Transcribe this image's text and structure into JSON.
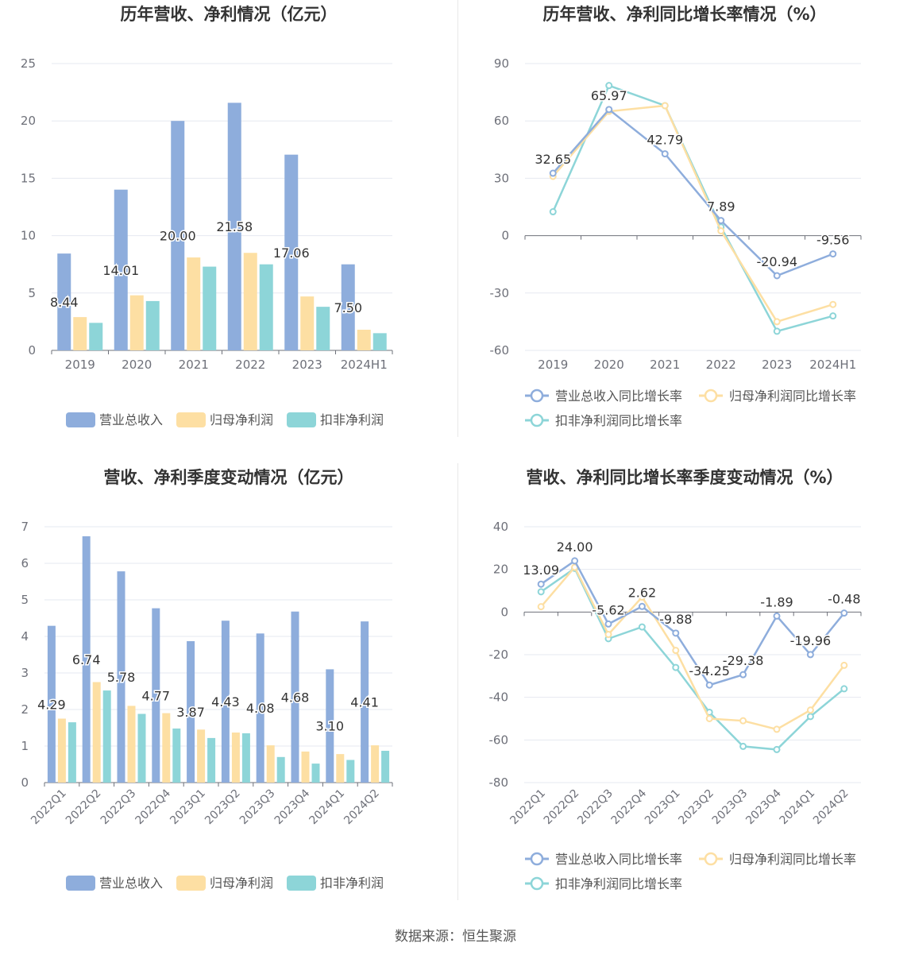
{
  "footer": "数据来源：恒生聚源",
  "colors": {
    "revenue": "#8EADDC",
    "net_profit": "#FDDFA3",
    "deducted_profit": "#8DD5D8"
  },
  "chart_data": [
    {
      "type": "bar",
      "title": "历年营收、净利情况（亿元）",
      "categories": [
        "2019",
        "2020",
        "2021",
        "2022",
        "2023",
        "2024H1"
      ],
      "ylim": [
        0,
        25
      ],
      "yticks": [
        0,
        5,
        10,
        15,
        20,
        25
      ],
      "grid": true,
      "legend_position": "bottom",
      "series": [
        {
          "name": "营业总收入",
          "values": [
            8.44,
            14.01,
            20.0,
            21.58,
            17.06,
            7.5
          ],
          "labels": [
            "8.44",
            "14.01",
            "20.00",
            "21.58",
            "17.06",
            "7.50"
          ]
        },
        {
          "name": "归母净利润",
          "values": [
            2.9,
            4.8,
            8.1,
            8.5,
            4.7,
            1.8
          ]
        },
        {
          "name": "扣非净利润",
          "values": [
            2.4,
            4.3,
            7.3,
            7.5,
            3.8,
            1.5
          ]
        }
      ]
    },
    {
      "type": "line",
      "title": "历年营收、净利同比增长率情况（%）",
      "categories": [
        "2019",
        "2020",
        "2021",
        "2022",
        "2023",
        "2024H1"
      ],
      "ylim": [
        -60,
        90
      ],
      "yticks": [
        -60,
        -30,
        0,
        30,
        60,
        90
      ],
      "grid": true,
      "legend_position": "bottom",
      "series": [
        {
          "name": "营业总收入同比增长率",
          "values": [
            32.65,
            65.97,
            42.79,
            7.89,
            -20.94,
            -9.56
          ],
          "labels": [
            "32.65",
            "65.97",
            "42.79",
            "7.89",
            "-20.94",
            "-9.56"
          ]
        },
        {
          "name": "归母净利润同比增长率",
          "values": [
            31.0,
            65.0,
            68.0,
            2.5,
            -45.0,
            -36.0
          ]
        },
        {
          "name": "扣非净利润同比增长率",
          "values": [
            12.5,
            78.5,
            68.0,
            4.5,
            -50.0,
            -42.0
          ]
        }
      ]
    },
    {
      "type": "bar",
      "title": "营收、净利季度变动情况（亿元）",
      "categories": [
        "2022Q1",
        "2022Q2",
        "2022Q3",
        "2022Q4",
        "2023Q1",
        "2023Q2",
        "2023Q3",
        "2023Q4",
        "2024Q1",
        "2024Q2"
      ],
      "ylim": [
        0,
        7
      ],
      "yticks": [
        0,
        1,
        2,
        3,
        4,
        5,
        6,
        7
      ],
      "grid": true,
      "legend_position": "bottom",
      "series": [
        {
          "name": "营业总收入",
          "values": [
            4.29,
            6.74,
            5.78,
            4.77,
            3.87,
            4.43,
            4.08,
            4.68,
            3.1,
            4.41
          ],
          "labels": [
            "4.29",
            "6.74",
            "5.78",
            "4.77",
            "3.87",
            "4.43",
            "4.08",
            "4.68",
            "3.10",
            "4.41"
          ]
        },
        {
          "name": "归母净利润",
          "values": [
            1.75,
            2.75,
            2.1,
            1.9,
            1.45,
            1.37,
            1.02,
            0.85,
            0.78,
            1.02
          ]
        },
        {
          "name": "扣非净利润",
          "values": [
            1.65,
            2.52,
            1.88,
            1.48,
            1.22,
            1.35,
            0.7,
            0.52,
            0.62,
            0.87
          ]
        }
      ]
    },
    {
      "type": "line",
      "title": "营收、净利同比增长率季度变动情况（%）",
      "categories": [
        "2022Q1",
        "2022Q2",
        "2022Q3",
        "2022Q4",
        "2023Q1",
        "2023Q2",
        "2023Q3",
        "2023Q4",
        "2024Q1",
        "2024Q2"
      ],
      "ylim": [
        -80,
        40
      ],
      "yticks": [
        -80,
        -60,
        -40,
        -20,
        0,
        20,
        40
      ],
      "grid": true,
      "legend_position": "bottom",
      "series": [
        {
          "name": "营业总收入同比增长率",
          "values": [
            13.09,
            24.0,
            -5.62,
            2.62,
            -9.88,
            -34.25,
            -29.38,
            -1.89,
            -19.96,
            -0.48
          ],
          "labels": [
            "13.09",
            "24.00",
            "-5.62",
            "2.62",
            "-9.88",
            "-34.25",
            "-29.38",
            "-1.89",
            "-19.96",
            "-0.48"
          ]
        },
        {
          "name": "归母净利润同比增长率",
          "values": [
            2.5,
            21.0,
            -10.5,
            7.0,
            -18.0,
            -50.0,
            -51.0,
            -55.0,
            -46.0,
            -25.0
          ]
        },
        {
          "name": "扣非净利润同比增长率",
          "values": [
            9.5,
            20.5,
            -12.5,
            -7.0,
            -26.0,
            -47.0,
            -63.0,
            -64.5,
            -49.0,
            -36.0
          ]
        }
      ]
    }
  ]
}
